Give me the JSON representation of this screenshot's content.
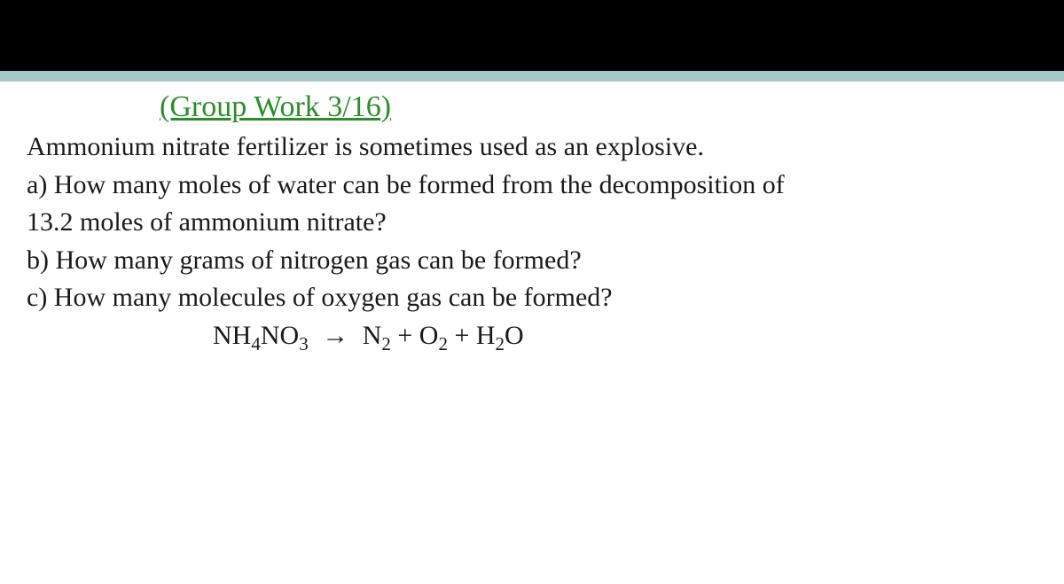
{
  "colors": {
    "top_bar": "#000000",
    "accent_bar": "#a8c8c8",
    "heading": "#2e8b2e",
    "body_text": "#1a1a1a",
    "page_bg": "#ffffff"
  },
  "typography": {
    "heading_fontsize_pt": 26,
    "body_fontsize_pt": 23,
    "font_family": "Times New Roman"
  },
  "heading": {
    "text": "(Group Work 3/16)",
    "underline": true
  },
  "problem": {
    "intro": "Ammonium nitrate fertilizer is sometimes used as an explosive.",
    "given_moles_NH4NO3": 13.2,
    "parts": {
      "a_prefix": "a)   How many moles of water can be formed from the decomposition of",
      "a_wrap": "13.2 moles of ammonium nitrate?",
      "b": "b)  How many grams of nitrogen gas can be formed?",
      "c": "c)  How many molecules of oxygen gas can be formed?"
    },
    "equation": {
      "display": "NH4NO3  →  N2 + O2 + H2O",
      "reactants": [
        {
          "formula": "NH4NO3",
          "sub1": "4",
          "sub2": "3"
        }
      ],
      "products": [
        {
          "formula": "N2",
          "sub": "2"
        },
        {
          "formula": "O2",
          "sub": "2"
        },
        {
          "formula": "H2O",
          "sub": "2"
        }
      ],
      "arrow": "→"
    }
  }
}
